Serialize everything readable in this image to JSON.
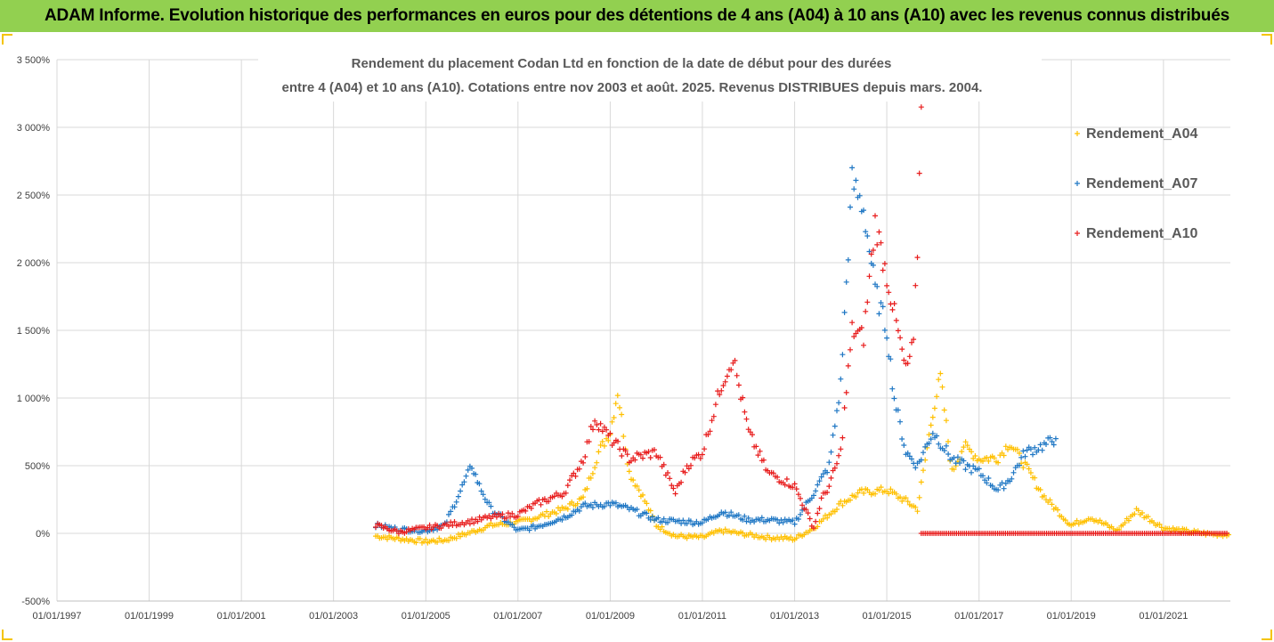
{
  "banner": {
    "text": "ADAM Informe. Evolution historique des performances en euros pour des détentions de 4 ans (A04) à 10 ans (A10) avec les revenus connus distribués"
  },
  "chart_data": {
    "type": "scatter",
    "title_lines": [
      "Rendement du placement Codan Ltd en fonction de la date de début pour des durées",
      "entre 4 (A04) et 10 ans (A10). Cotations entre nov 2003 et août. 2025. Revenus DISTRIBUES depuis mars. 2004."
    ],
    "xlabel": "",
    "ylabel": "",
    "x_range": [
      "1997-01-01",
      "2022-06-15"
    ],
    "x_tick_labels": [
      "01/01/1997",
      "01/01/1999",
      "01/01/2001",
      "01/01/2003",
      "01/01/2005",
      "01/01/2007",
      "01/01/2009",
      "01/01/2011",
      "01/01/2013",
      "01/01/2015",
      "01/01/2017",
      "01/01/2019",
      "01/01/2021"
    ],
    "ylim": [
      -500,
      3500
    ],
    "y_ticks": [
      -500,
      0,
      500,
      1000,
      1500,
      2000,
      2500,
      3000,
      3500
    ],
    "y_tick_labels": [
      "-500%",
      "0%",
      "500%",
      "1 000%",
      "1 500%",
      "2 000%",
      "2 500%",
      "3 000%",
      "3 500%"
    ],
    "grid": true,
    "legend_position": "right",
    "series": [
      {
        "name": "Rendement_A04",
        "color": "#ffc000",
        "marker": "+",
        "points": [
          [
            "2003-12-01",
            -20
          ],
          [
            "2004-06-01",
            -40
          ],
          [
            "2005-01-01",
            -60
          ],
          [
            "2005-06-01",
            -50
          ],
          [
            "2006-01-01",
            10
          ],
          [
            "2006-06-01",
            60
          ],
          [
            "2007-01-01",
            80
          ],
          [
            "2007-06-01",
            120
          ],
          [
            "2008-01-01",
            180
          ],
          [
            "2008-06-01",
            260
          ],
          [
            "2008-10-01",
            600
          ],
          [
            "2009-01-01",
            750
          ],
          [
            "2009-03-01",
            1050
          ],
          [
            "2009-06-01",
            450
          ],
          [
            "2009-09-01",
            300
          ],
          [
            "2010-01-01",
            60
          ],
          [
            "2010-06-01",
            -20
          ],
          [
            "2011-01-01",
            -30
          ],
          [
            "2011-06-01",
            20
          ],
          [
            "2012-01-01",
            -10
          ],
          [
            "2012-06-01",
            -30
          ],
          [
            "2013-01-01",
            -40
          ],
          [
            "2013-06-01",
            40
          ],
          [
            "2014-01-01",
            220
          ],
          [
            "2014-06-01",
            300
          ],
          [
            "2015-01-01",
            320
          ],
          [
            "2015-06-01",
            240
          ],
          [
            "2015-09-01",
            180
          ],
          [
            "2016-01-01",
            900
          ],
          [
            "2016-03-01",
            1150
          ],
          [
            "2016-06-01",
            450
          ],
          [
            "2016-09-01",
            650
          ],
          [
            "2017-01-01",
            550
          ],
          [
            "2017-06-01",
            560
          ],
          [
            "2017-09-01",
            670
          ],
          [
            "2018-01-01",
            500
          ],
          [
            "2018-06-01",
            270
          ],
          [
            "2019-01-01",
            60
          ],
          [
            "2019-06-01",
            120
          ],
          [
            "2020-01-01",
            20
          ],
          [
            "2020-06-01",
            170
          ],
          [
            "2021-01-01",
            40
          ],
          [
            "2021-06-01",
            20
          ],
          [
            "2022-01-01",
            -5
          ],
          [
            "2022-06-01",
            -10
          ]
        ]
      },
      {
        "name": "Rendement_A07",
        "color": "#1f77c4",
        "marker": "+",
        "points": [
          [
            "2003-12-01",
            60
          ],
          [
            "2004-06-01",
            30
          ],
          [
            "2005-01-01",
            20
          ],
          [
            "2005-06-01",
            60
          ],
          [
            "2005-09-01",
            250
          ],
          [
            "2006-01-01",
            500
          ],
          [
            "2006-03-01",
            350
          ],
          [
            "2006-06-01",
            180
          ],
          [
            "2007-01-01",
            20
          ],
          [
            "2007-06-01",
            50
          ],
          [
            "2008-01-01",
            120
          ],
          [
            "2008-06-01",
            200
          ],
          [
            "2009-01-01",
            220
          ],
          [
            "2009-06-01",
            180
          ],
          [
            "2010-01-01",
            100
          ],
          [
            "2010-06-01",
            90
          ],
          [
            "2011-01-01",
            80
          ],
          [
            "2011-06-01",
            160
          ],
          [
            "2012-01-01",
            100
          ],
          [
            "2012-06-01",
            100
          ],
          [
            "2013-01-01",
            80
          ],
          [
            "2013-06-01",
            300
          ],
          [
            "2013-10-01",
            500
          ],
          [
            "2014-01-01",
            1100
          ],
          [
            "2014-04-01",
            2600
          ],
          [
            "2014-07-01",
            2400
          ],
          [
            "2014-10-01",
            1800
          ],
          [
            "2015-01-01",
            1500
          ],
          [
            "2015-03-01",
            1000
          ],
          [
            "2015-06-01",
            600
          ],
          [
            "2015-09-01",
            500
          ],
          [
            "2016-01-01",
            750
          ],
          [
            "2016-06-01",
            550
          ],
          [
            "2017-01-01",
            450
          ],
          [
            "2017-06-01",
            320
          ],
          [
            "2017-09-01",
            400
          ],
          [
            "2018-01-01",
            600
          ],
          [
            "2018-06-01",
            650
          ],
          [
            "2018-09-01",
            700
          ]
        ]
      },
      {
        "name": "Rendement_A10",
        "color": "#e81c1c",
        "marker": "+",
        "points": [
          [
            "2003-12-01",
            60
          ],
          [
            "2004-06-01",
            10
          ],
          [
            "2005-01-01",
            40
          ],
          [
            "2005-06-01",
            60
          ],
          [
            "2006-01-01",
            90
          ],
          [
            "2006-06-01",
            120
          ],
          [
            "2007-01-01",
            140
          ],
          [
            "2007-06-01",
            220
          ],
          [
            "2008-01-01",
            300
          ],
          [
            "2008-06-01",
            550
          ],
          [
            "2008-09-01",
            850
          ],
          [
            "2009-01-01",
            700
          ],
          [
            "2009-06-01",
            550
          ],
          [
            "2010-01-01",
            600
          ],
          [
            "2010-06-01",
            300
          ],
          [
            "2010-09-01",
            500
          ],
          [
            "2011-01-01",
            600
          ],
          [
            "2011-06-01",
            1100
          ],
          [
            "2011-09-01",
            1300
          ],
          [
            "2012-01-01",
            750
          ],
          [
            "2012-06-01",
            450
          ],
          [
            "2013-01-01",
            350
          ],
          [
            "2013-06-01",
            40
          ],
          [
            "2013-08-01",
            250
          ],
          [
            "2013-10-01",
            350
          ],
          [
            "2014-01-01",
            600
          ],
          [
            "2014-04-01",
            1500
          ],
          [
            "2014-07-01",
            1450
          ],
          [
            "2014-10-01",
            2300
          ],
          [
            "2015-01-01",
            1900
          ],
          [
            "2015-06-01",
            1200
          ],
          [
            "2015-08-01",
            1400
          ],
          [
            "2015-09-01",
            2100
          ],
          [
            "2015-10-01",
            3150
          ]
        ],
        "flat_zero_segment": [
          "2015-10-01",
          "2022-06-01"
        ]
      }
    ]
  }
}
